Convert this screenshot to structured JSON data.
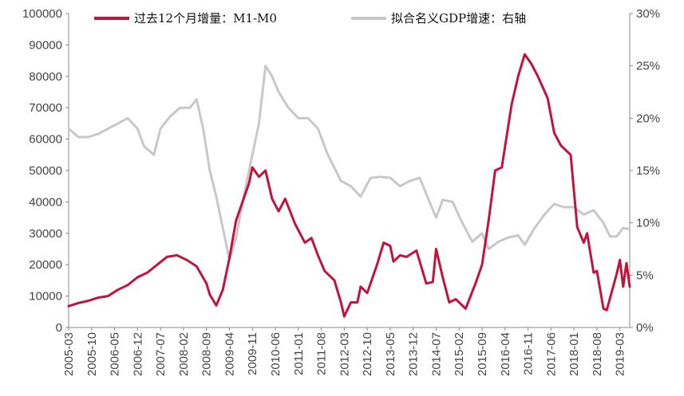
{
  "chart_data": {
    "type": "line",
    "title": "",
    "xlabel": "",
    "ylabel": "",
    "y_left_lim": [
      0,
      100000
    ],
    "y_left_ticks": [
      0,
      10000,
      20000,
      30000,
      40000,
      50000,
      60000,
      70000,
      80000,
      90000,
      100000
    ],
    "y_right_lim": [
      0,
      30
    ],
    "y_right_ticks": [
      "0%",
      "5%",
      "10%",
      "15%",
      "20%",
      "25%",
      "30%"
    ],
    "x_tick_labels": [
      "2005-03",
      "2005-10",
      "2006-05",
      "2006-12",
      "2007-07",
      "2008-02",
      "2008-09",
      "2009-04",
      "2009-11",
      "2010-06",
      "2011-01",
      "2011-08",
      "2012-03",
      "2012-10",
      "2013-05",
      "2013-12",
      "2014-07",
      "2015-02",
      "2015-09",
      "2016-04",
      "2016-11",
      "2017-06",
      "2018-01",
      "2018-08",
      "2019-03"
    ],
    "x_range": [
      "2005-03",
      "2019-06"
    ],
    "grid": false,
    "legend_position": "top",
    "series": [
      {
        "name": "过去12个月增量：M1-M0",
        "axis": "left",
        "color": "#c0143c",
        "points": [
          [
            "2005-03",
            6800
          ],
          [
            "2005-06",
            7800
          ],
          [
            "2005-09",
            8500
          ],
          [
            "2005-12",
            9500
          ],
          [
            "2006-03",
            10000
          ],
          [
            "2006-06",
            12000
          ],
          [
            "2006-09",
            13500
          ],
          [
            "2006-12",
            16000
          ],
          [
            "2007-03",
            17500
          ],
          [
            "2007-06",
            20000
          ],
          [
            "2007-09",
            22500
          ],
          [
            "2007-12",
            23000
          ],
          [
            "2008-03",
            21500
          ],
          [
            "2008-06",
            19500
          ],
          [
            "2008-09",
            14000
          ],
          [
            "2008-10",
            10500
          ],
          [
            "2008-12",
            7000
          ],
          [
            "2009-02",
            12000
          ],
          [
            "2009-04",
            22000
          ],
          [
            "2009-06",
            34000
          ],
          [
            "2009-08",
            40000
          ],
          [
            "2009-10",
            46000
          ],
          [
            "2009-11",
            51000
          ],
          [
            "2010-01",
            48000
          ],
          [
            "2010-03",
            50000
          ],
          [
            "2010-05",
            41000
          ],
          [
            "2010-07",
            37000
          ],
          [
            "2010-09",
            41000
          ],
          [
            "2010-12",
            33000
          ],
          [
            "2011-03",
            27000
          ],
          [
            "2011-05",
            28500
          ],
          [
            "2011-07",
            23000
          ],
          [
            "2011-09",
            18000
          ],
          [
            "2011-12",
            15000
          ],
          [
            "2012-02",
            8000
          ],
          [
            "2012-03",
            3500
          ],
          [
            "2012-05",
            8000
          ],
          [
            "2012-07",
            8000
          ],
          [
            "2012-08",
            13000
          ],
          [
            "2012-10",
            11000
          ],
          [
            "2013-01",
            20000
          ],
          [
            "2013-03",
            27000
          ],
          [
            "2013-05",
            26000
          ],
          [
            "2013-06",
            21000
          ],
          [
            "2013-08",
            23000
          ],
          [
            "2013-10",
            22500
          ],
          [
            "2014-01",
            24500
          ],
          [
            "2014-04",
            14000
          ],
          [
            "2014-06",
            14500
          ],
          [
            "2014-07",
            25000
          ],
          [
            "2014-09",
            16000
          ],
          [
            "2014-11",
            8000
          ],
          [
            "2015-01",
            9000
          ],
          [
            "2015-04",
            6000
          ],
          [
            "2015-07",
            14000
          ],
          [
            "2015-09",
            20000
          ],
          [
            "2015-11",
            34000
          ],
          [
            "2016-01",
            50000
          ],
          [
            "2016-03",
            51000
          ],
          [
            "2016-06",
            71000
          ],
          [
            "2016-08",
            80000
          ],
          [
            "2016-10",
            87000
          ],
          [
            "2016-12",
            84000
          ],
          [
            "2017-02",
            80000
          ],
          [
            "2017-05",
            73000
          ],
          [
            "2017-07",
            62000
          ],
          [
            "2017-09",
            58000
          ],
          [
            "2017-12",
            55000
          ],
          [
            "2018-02",
            32000
          ],
          [
            "2018-04",
            27000
          ],
          [
            "2018-05",
            30000
          ],
          [
            "2018-07",
            17500
          ],
          [
            "2018-08",
            18000
          ],
          [
            "2018-10",
            6000
          ],
          [
            "2018-11",
            5500
          ],
          [
            "2019-02",
            17000
          ],
          [
            "2019-03",
            21500
          ],
          [
            "2019-04",
            13000
          ],
          [
            "2019-05",
            20500
          ],
          [
            "2019-06",
            13000
          ]
        ]
      },
      {
        "name": "拟合名义GDP增速：右轴",
        "axis": "right",
        "color": "#c8c8c8",
        "points": [
          [
            "2005-03",
            19.0
          ],
          [
            "2005-06",
            18.2
          ],
          [
            "2005-09",
            18.2
          ],
          [
            "2005-12",
            18.5
          ],
          [
            "2006-03",
            19.0
          ],
          [
            "2006-06",
            19.5
          ],
          [
            "2006-09",
            20.0
          ],
          [
            "2006-12",
            19.0
          ],
          [
            "2007-02",
            17.3
          ],
          [
            "2007-05",
            16.5
          ],
          [
            "2007-07",
            19.0
          ],
          [
            "2007-10",
            20.2
          ],
          [
            "2008-01",
            21.0
          ],
          [
            "2008-04",
            21.0
          ],
          [
            "2008-06",
            21.8
          ],
          [
            "2008-08",
            19.0
          ],
          [
            "2008-10",
            15.0
          ],
          [
            "2008-12",
            12.5
          ],
          [
            "2009-02",
            9.5
          ],
          [
            "2009-04",
            6.5
          ],
          [
            "2009-06",
            8.5
          ],
          [
            "2009-08",
            12.0
          ],
          [
            "2009-11",
            16.5
          ],
          [
            "2010-01",
            19.5
          ],
          [
            "2010-03",
            25.0
          ],
          [
            "2010-05",
            24.0
          ],
          [
            "2010-07",
            22.5
          ],
          [
            "2010-10",
            21.0
          ],
          [
            "2011-01",
            20.0
          ],
          [
            "2011-04",
            20.0
          ],
          [
            "2011-07",
            19.0
          ],
          [
            "2011-10",
            16.5
          ],
          [
            "2012-02",
            14.0
          ],
          [
            "2012-05",
            13.5
          ],
          [
            "2012-08",
            12.5
          ],
          [
            "2012-11",
            14.3
          ],
          [
            "2013-02",
            14.4
          ],
          [
            "2013-05",
            14.3
          ],
          [
            "2013-08",
            13.5
          ],
          [
            "2013-11",
            14.0
          ],
          [
            "2014-02",
            14.3
          ],
          [
            "2014-05",
            12.0
          ],
          [
            "2014-07",
            10.5
          ],
          [
            "2014-09",
            12.2
          ],
          [
            "2014-12",
            12.0
          ],
          [
            "2015-03",
            10.0
          ],
          [
            "2015-06",
            8.2
          ],
          [
            "2015-09",
            9.0
          ],
          [
            "2015-11",
            7.5
          ],
          [
            "2016-02",
            8.2
          ],
          [
            "2016-05",
            8.6
          ],
          [
            "2016-08",
            8.8
          ],
          [
            "2016-10",
            7.9
          ],
          [
            "2017-01",
            9.5
          ],
          [
            "2017-04",
            10.8
          ],
          [
            "2017-07",
            11.8
          ],
          [
            "2017-10",
            11.5
          ],
          [
            "2018-01",
            11.5
          ],
          [
            "2018-04",
            10.8
          ],
          [
            "2018-07",
            11.2
          ],
          [
            "2018-10",
            10.0
          ],
          [
            "2018-12",
            8.7
          ],
          [
            "2019-02",
            8.7
          ],
          [
            "2019-04",
            9.5
          ],
          [
            "2019-06",
            9.4
          ]
        ]
      }
    ]
  }
}
